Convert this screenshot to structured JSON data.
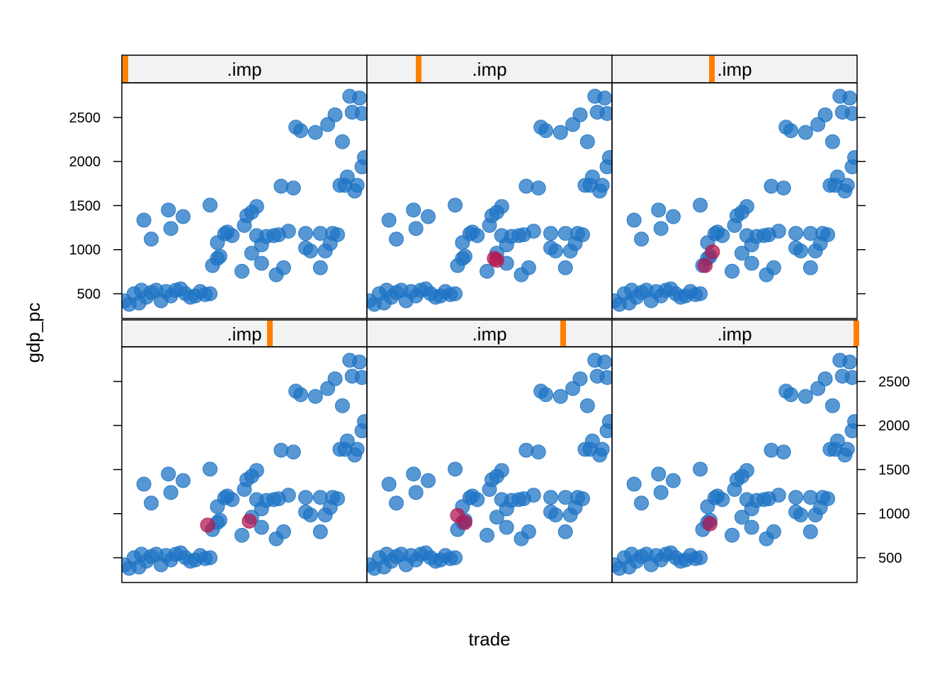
{
  "chart_data": {
    "type": "scatter",
    "xlabel": "trade",
    "ylabel": "gdp_pc",
    "xlim": [
      0,
      100
    ],
    "ylim": [
      219,
      2893
    ],
    "yticks": [
      500,
      1000,
      1500,
      2000,
      2500
    ],
    "imp_lim": [
      0,
      5
    ],
    "observed": {
      "color": "#1f74c4",
      "x": [
        1,
        3,
        5,
        7,
        8,
        10,
        12,
        14,
        16,
        18,
        20,
        22,
        24,
        26,
        28,
        30,
        32,
        34,
        36,
        9,
        12,
        19,
        20,
        25,
        36,
        37,
        39,
        39,
        40,
        42,
        43,
        45,
        49,
        50,
        51,
        53,
        55,
        53,
        55,
        57,
        57,
        59,
        62,
        63,
        64,
        66,
        65,
        68,
        70,
        71,
        73,
        75,
        75,
        77,
        79,
        81,
        81,
        83,
        84,
        85,
        86,
        87,
        88,
        89,
        90,
        91,
        92,
        93,
        94,
        95,
        96,
        97,
        98,
        98,
        99
      ],
      "values": [
        420,
        380,
        500,
        395,
        540,
        460,
        515,
        540,
        420,
        525,
        475,
        540,
        555,
        500,
        460,
        475,
        525,
        490,
        500,
        1335,
        1120,
        1450,
        1240,
        1375,
        1505,
        820,
        900,
        1080,
        925,
        1180,
        1200,
        1160,
        755,
        1275,
        1385,
        1425,
        1490,
        960,
        1160,
        845,
        1055,
        1150,
        1160,
        715,
        1170,
        795,
        1720,
        1210,
        1700,
        2390,
        2350,
        1020,
        1185,
        985,
        2330,
        795,
        1185,
        985,
        2420,
        1070,
        1185,
        2530,
        1170,
        1730,
        2225,
        1730,
        1825,
        2740,
        2560,
        1665,
        1730,
        2720,
        1940,
        2545,
        2045
      ]
    },
    "imputed_color": "#b5174f",
    "strip_color": "#ff7f00",
    "panels": [
      {
        "strip": ".imp",
        "imp": 0,
        "x": [],
        "values": []
      },
      {
        "strip": ".imp",
        "imp": 1,
        "x": [
          53,
          52
        ],
        "values": [
          880,
          900
        ]
      },
      {
        "strip": ".imp",
        "imp": 2,
        "x": [
          38,
          41
        ],
        "values": [
          820,
          975
        ]
      },
      {
        "strip": ".imp",
        "imp": 3,
        "x": [
          35,
          52
        ],
        "values": [
          870,
          915
        ]
      },
      {
        "strip": ".imp",
        "imp": 4,
        "x": [
          37,
          40
        ],
        "values": [
          980,
          900
        ]
      },
      {
        "strip": ".imp",
        "imp": 5,
        "x": [
          40
        ],
        "values": [
          885
        ]
      }
    ]
  }
}
